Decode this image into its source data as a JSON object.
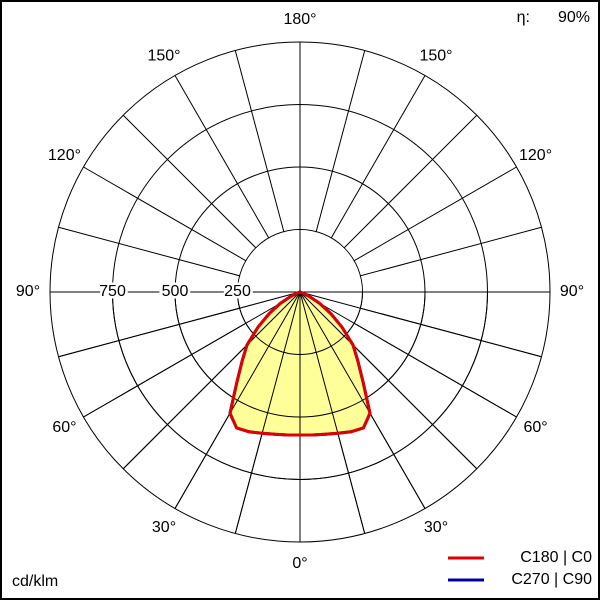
{
  "chart_data": {
    "type": "polar",
    "unit": "cd/klm",
    "efficiency_symbol": "η:",
    "efficiency_text": "90%",
    "rlim": [
      0,
      1000
    ],
    "rticks": [
      250,
      500,
      750
    ],
    "angle_ticks": [
      {
        "value": 0,
        "label": "0°"
      },
      {
        "value": 30,
        "label": "30°"
      },
      {
        "value": 60,
        "label": "60°"
      },
      {
        "value": 90,
        "label": "90°"
      },
      {
        "value": 120,
        "label": "120°"
      },
      {
        "value": 150,
        "label": "150°"
      },
      {
        "value": 180,
        "label": "180°"
      }
    ],
    "angles": [
      0,
      5,
      10,
      15,
      20,
      25,
      30,
      35,
      40,
      45,
      50,
      55,
      60,
      65,
      70,
      75,
      80,
      85,
      90
    ],
    "series": [
      {
        "name": "C270 | C90",
        "color": "#0000a0",
        "values": [
          572,
          574,
          578,
          585,
          595,
          600,
          560,
          440,
          360,
          300,
          220,
          150,
          90,
          40,
          10,
          0,
          0,
          0,
          0
        ]
      },
      {
        "name": "C180 | C0",
        "color": "#e00000",
        "values": [
          572,
          574,
          578,
          585,
          595,
          600,
          560,
          440,
          360,
          300,
          220,
          150,
          90,
          40,
          10,
          0,
          0,
          0,
          0
        ]
      }
    ],
    "fill_color": "#ffff99"
  }
}
